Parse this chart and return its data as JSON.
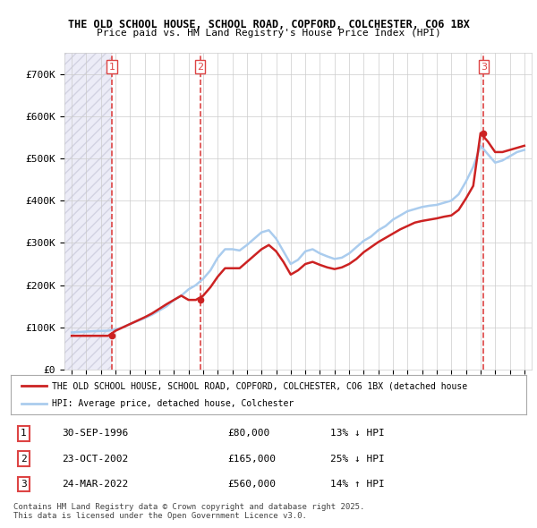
{
  "title_line1": "THE OLD SCHOOL HOUSE, SCHOOL ROAD, COPFORD, COLCHESTER, CO6 1BX",
  "title_line2": "Price paid vs. HM Land Registry's House Price Index (HPI)",
  "ylabel": "",
  "ylim": [
    0,
    750000
  ],
  "yticks": [
    0,
    100000,
    200000,
    300000,
    400000,
    500000,
    600000,
    700000
  ],
  "ytick_labels": [
    "£0",
    "£100K",
    "£200K",
    "£300K",
    "£400K",
    "£500K",
    "£600K",
    "£700K"
  ],
  "hpi_color": "#aaccee",
  "price_color": "#cc2222",
  "sale_marker_color": "#cc2222",
  "transaction_color": "#cc0000",
  "vline_color": "#dd4444",
  "background_color": "#ffffff",
  "chart_bg": "#f8f8ff",
  "hatch_color": "#e0e0f0",
  "legend_label_red": "THE OLD SCHOOL HOUSE, SCHOOL ROAD, COPFORD, COLCHESTER, CO6 1BX (detached house",
  "legend_label_blue": "HPI: Average price, detached house, Colchester",
  "footer": "Contains HM Land Registry data © Crown copyright and database right 2025.\nThis data is licensed under the Open Government Licence v3.0.",
  "transactions": [
    {
      "num": 1,
      "date": "30-SEP-1996",
      "price": 80000,
      "hpi_diff": "13% ↓ HPI",
      "year_x": 1996.75
    },
    {
      "num": 2,
      "date": "23-OCT-2002",
      "price": 165000,
      "hpi_diff": "25% ↓ HPI",
      "year_x": 2002.8
    },
    {
      "num": 3,
      "date": "24-MAR-2022",
      "price": 560000,
      "hpi_diff": "14% ↑ HPI",
      "year_x": 2022.22
    }
  ],
  "hpi_data": {
    "years": [
      1994,
      1994.5,
      1995,
      1995.5,
      1996,
      1996.5,
      1997,
      1997.5,
      1998,
      1998.5,
      1999,
      1999.5,
      2000,
      2000.5,
      2001,
      2001.5,
      2002,
      2002.5,
      2003,
      2003.5,
      2004,
      2004.5,
      2005,
      2005.5,
      2006,
      2006.5,
      2007,
      2007.5,
      2008,
      2008.5,
      2009,
      2009.5,
      2010,
      2010.5,
      2011,
      2011.5,
      2012,
      2012.5,
      2013,
      2013.5,
      2014,
      2014.5,
      2015,
      2015.5,
      2016,
      2016.5,
      2017,
      2017.5,
      2018,
      2018.5,
      2019,
      2019.5,
      2020,
      2020.5,
      2021,
      2021.5,
      2022,
      2022.5,
      2023,
      2023.5,
      2024,
      2024.5,
      2025
    ],
    "values": [
      88000,
      89000,
      90000,
      91000,
      91500,
      92000,
      95000,
      100000,
      108000,
      115000,
      122000,
      130000,
      140000,
      150000,
      165000,
      175000,
      190000,
      200000,
      215000,
      235000,
      265000,
      285000,
      285000,
      282000,
      295000,
      310000,
      325000,
      330000,
      310000,
      280000,
      250000,
      260000,
      280000,
      285000,
      275000,
      268000,
      262000,
      265000,
      275000,
      290000,
      305000,
      315000,
      330000,
      340000,
      355000,
      365000,
      375000,
      380000,
      385000,
      388000,
      390000,
      395000,
      400000,
      415000,
      445000,
      480000,
      530000,
      510000,
      490000,
      495000,
      505000,
      515000,
      520000
    ]
  },
  "price_data": {
    "years": [
      1994,
      1994.5,
      1995,
      1995.5,
      1996,
      1996.5,
      1997,
      1997.5,
      1998,
      1998.5,
      1999,
      1999.5,
      2000,
      2000.5,
      2001,
      2001.5,
      2002,
      2002.5,
      2003,
      2003.5,
      2004,
      2004.5,
      2005,
      2005.5,
      2006,
      2006.5,
      2007,
      2007.5,
      2008,
      2008.5,
      2009,
      2009.5,
      2010,
      2010.5,
      2011,
      2011.5,
      2012,
      2012.5,
      2013,
      2013.5,
      2014,
      2014.5,
      2015,
      2015.5,
      2016,
      2016.5,
      2017,
      2017.5,
      2018,
      2018.5,
      2019,
      2019.5,
      2020,
      2020.5,
      2021,
      2021.5,
      2022,
      2022.5,
      2023,
      2023.5,
      2024,
      2024.5,
      2025
    ],
    "values": [
      80000,
      80000,
      80000,
      80000,
      80000,
      80000,
      92000,
      100000,
      108000,
      116000,
      124000,
      133000,
      144000,
      155000,
      165000,
      175000,
      165000,
      165000,
      175000,
      195000,
      220000,
      240000,
      240000,
      240000,
      255000,
      270000,
      285000,
      295000,
      280000,
      255000,
      225000,
      235000,
      250000,
      255000,
      248000,
      242000,
      238000,
      242000,
      250000,
      262000,
      278000,
      290000,
      302000,
      312000,
      322000,
      332000,
      340000,
      348000,
      352000,
      355000,
      358000,
      362000,
      365000,
      378000,
      405000,
      435000,
      560000,
      540000,
      515000,
      515000,
      520000,
      525000,
      530000
    ]
  },
  "xlim": [
    1993.5,
    2025.5
  ],
  "xticks": [
    1994,
    1995,
    1996,
    1997,
    1998,
    1999,
    2000,
    2001,
    2002,
    2003,
    2004,
    2005,
    2006,
    2007,
    2008,
    2009,
    2010,
    2011,
    2012,
    2013,
    2014,
    2015,
    2016,
    2017,
    2018,
    2019,
    2020,
    2021,
    2022,
    2023,
    2024,
    2025
  ]
}
